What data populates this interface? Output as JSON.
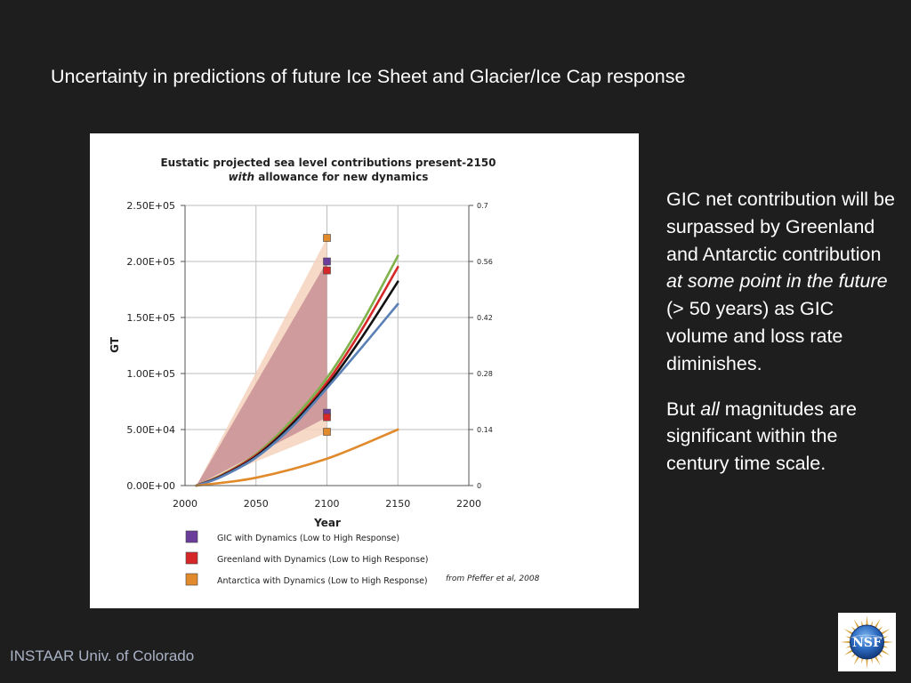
{
  "slide": {
    "title": "Uncertainty in predictions of future Ice Sheet and Glacier/Ice Cap response",
    "paragraph1": {
      "part1": "GIC net contribution will be surpassed by Greenland and Antarctic contribution ",
      "italic": "at some point in the future",
      "part2": " (> 50 years) as GIC volume and loss rate diminishes."
    },
    "paragraph2": {
      "part1": "But ",
      "italic": "all",
      "part2": " magnitudes are significant within the century time scale."
    },
    "footer": "INSTAAR Univ. of Colorado",
    "logo_text": "NSF"
  },
  "chart_data": {
    "type": "line",
    "title_line1": "Eustatic projected sea level contributions present-2150",
    "title_line2_italic": "with",
    "title_line2_rest": " allowance for new dynamics",
    "xlabel": "Year",
    "ylabel": "GT",
    "xlim": [
      2000,
      2200
    ],
    "ylim": [
      0,
      250000
    ],
    "x_ticks": [
      2000,
      2050,
      2100,
      2150,
      2200
    ],
    "x_tick_labels": [
      "2000",
      "2050",
      "2100",
      "2150",
      "2200"
    ],
    "y_ticks": [
      0,
      50000,
      100000,
      150000,
      200000,
      250000
    ],
    "y_tick_labels": [
      "0.00E+00",
      "5.00E+04",
      "1.00E+05",
      "1.50E+05",
      "2.00E+05",
      "2.50E+05"
    ],
    "y2_ticks": [
      0,
      50000,
      100000,
      150000,
      200000,
      250000
    ],
    "y2_tick_labels": [
      "0",
      "0.14",
      "0.28",
      "0.42",
      "0.56",
      "0.7"
    ],
    "grid": true,
    "colors": {
      "gic": "#6a3d9a",
      "greenland": "#d62728",
      "antarctica": "#e08a2c",
      "green_line": "#7fb24a",
      "black_line": "#111111",
      "blue_line": "#5a80b5",
      "band_outer": "#f4d3bd",
      "band_inner": "#c98f95"
    },
    "series": [
      {
        "x": [
          2008,
          2025,
          2050,
          2075,
          2100,
          2125,
          2150
        ],
        "values": [
          0,
          9000,
          28000,
          58000,
          96000,
          146000,
          205000
        ],
        "color": "#7fb24a"
      },
      {
        "x": [
          2008,
          2025,
          2050,
          2075,
          2100,
          2125,
          2150
        ],
        "values": [
          0,
          8500,
          27000,
          55000,
          92000,
          140000,
          195000
        ],
        "color": "#d62728"
      },
      {
        "x": [
          2008,
          2025,
          2050,
          2075,
          2100,
          2125,
          2150
        ],
        "values": [
          0,
          8000,
          26000,
          54000,
          89000,
          133000,
          182000
        ],
        "color": "#111111"
      },
      {
        "x": [
          2008,
          2025,
          2050,
          2075,
          2100,
          2125,
          2150
        ],
        "values": [
          0,
          7500,
          25000,
          52000,
          87000,
          124000,
          162000
        ],
        "color": "#5a80b5"
      },
      {
        "x": [
          2008,
          2050,
          2100,
          2150
        ],
        "values": [
          0,
          7000,
          24000,
          50000
        ],
        "color": "#e08a2c"
      }
    ],
    "bands": [
      {
        "x": [
          2008,
          2100
        ],
        "low": [
          0,
          47000
        ],
        "high": [
          0,
          221000
        ],
        "color": "#f4d3bd"
      },
      {
        "x": [
          2008,
          2100
        ],
        "low": [
          0,
          61000
        ],
        "high": [
          0,
          200000
        ],
        "color": "#c98f95"
      }
    ],
    "markers": [
      {
        "x": 2100,
        "y": 221000,
        "color": "#e08a2c"
      },
      {
        "x": 2100,
        "y": 200000,
        "color": "#6a3d9a"
      },
      {
        "x": 2100,
        "y": 192000,
        "color": "#d62728"
      },
      {
        "x": 2100,
        "y": 65000,
        "color": "#6a3d9a"
      },
      {
        "x": 2100,
        "y": 61000,
        "color": "#d62728"
      },
      {
        "x": 2100,
        "y": 48000,
        "color": "#e08a2c"
      }
    ],
    "legend": [
      {
        "label": "GIC with Dynamics (Low to High Response)",
        "color": "#6a3d9a"
      },
      {
        "label": "Greenland with Dynamics (Low to High Response)",
        "color": "#d62728"
      },
      {
        "label": "Antarctica with Dynamics (Low to High Response)",
        "color": "#e08a2c"
      }
    ],
    "citation": "from Pfeffer et al, 2008"
  }
}
